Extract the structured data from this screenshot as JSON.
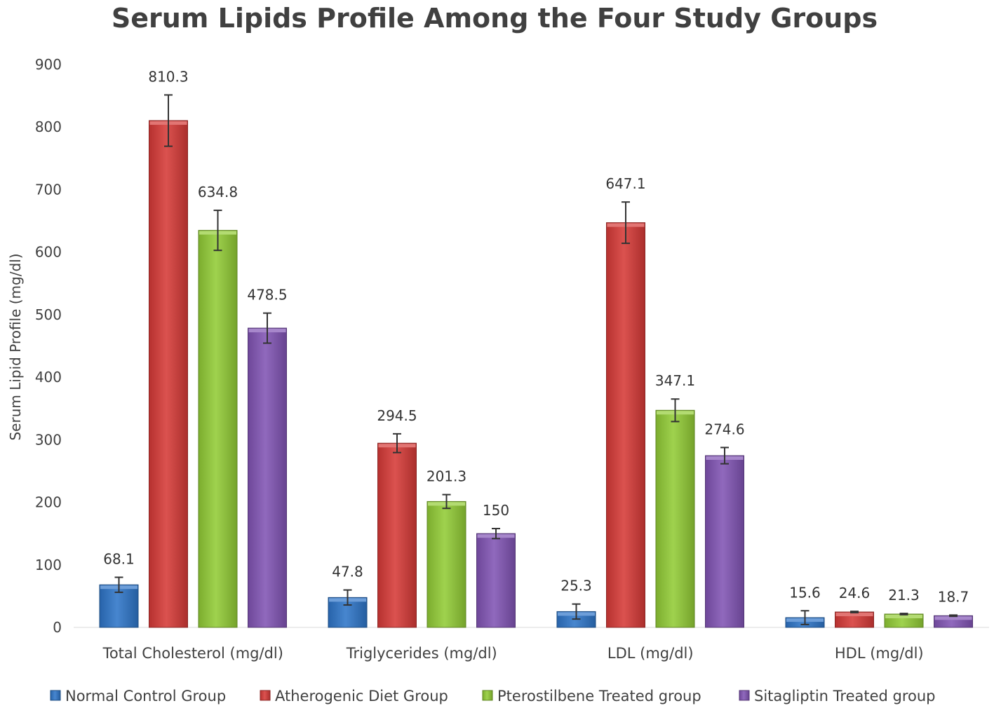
{
  "chart_data": {
    "type": "bar",
    "title": "Serum Lipids Profile Among the Four Study Groups",
    "xlabel": "",
    "ylabel": "Serum Lipid Profile (mg/dl)",
    "ylim": [
      0,
      900
    ],
    "yticks": [
      0,
      100,
      200,
      300,
      400,
      500,
      600,
      700,
      800,
      900
    ],
    "grid": false,
    "legend_position": "bottom",
    "categories": [
      "Total Cholesterol (mg/dl)",
      "Triglycerides (mg/dl)",
      "LDL (mg/dl)",
      "HDL (mg/dl)"
    ],
    "series": [
      {
        "name": "Normal Control Group",
        "color": "#2e75c8",
        "values": [
          68.1,
          47.8,
          25.3,
          15.6
        ],
        "labels": [
          "68.1",
          "47.8",
          "25.3",
          "15.6"
        ],
        "errors": [
          12,
          12,
          12,
          11
        ]
      },
      {
        "name": "Atherogenic Diet Group",
        "color": "#d63a37",
        "values": [
          810.3,
          294.5,
          647.1,
          24.6
        ],
        "labels": [
          "810.3",
          "294.5",
          "647.1",
          "24.6"
        ],
        "errors": [
          41,
          15,
          33,
          1
        ]
      },
      {
        "name": "Pterostilbene Treated group",
        "color": "#92cc36",
        "values": [
          634.8,
          201.3,
          347.1,
          21.3
        ],
        "labels": [
          "634.8",
          "201.3",
          "347.1",
          "21.3"
        ],
        "errors": [
          32,
          11,
          18,
          1
        ]
      },
      {
        "name": "Sitagliptin Treated group",
        "color": "#8154b4",
        "values": [
          478.5,
          150,
          274.6,
          18.7
        ],
        "labels": [
          "478.5",
          "150",
          "274.6",
          "18.7"
        ],
        "errors": [
          24,
          8,
          13,
          1
        ]
      }
    ]
  }
}
